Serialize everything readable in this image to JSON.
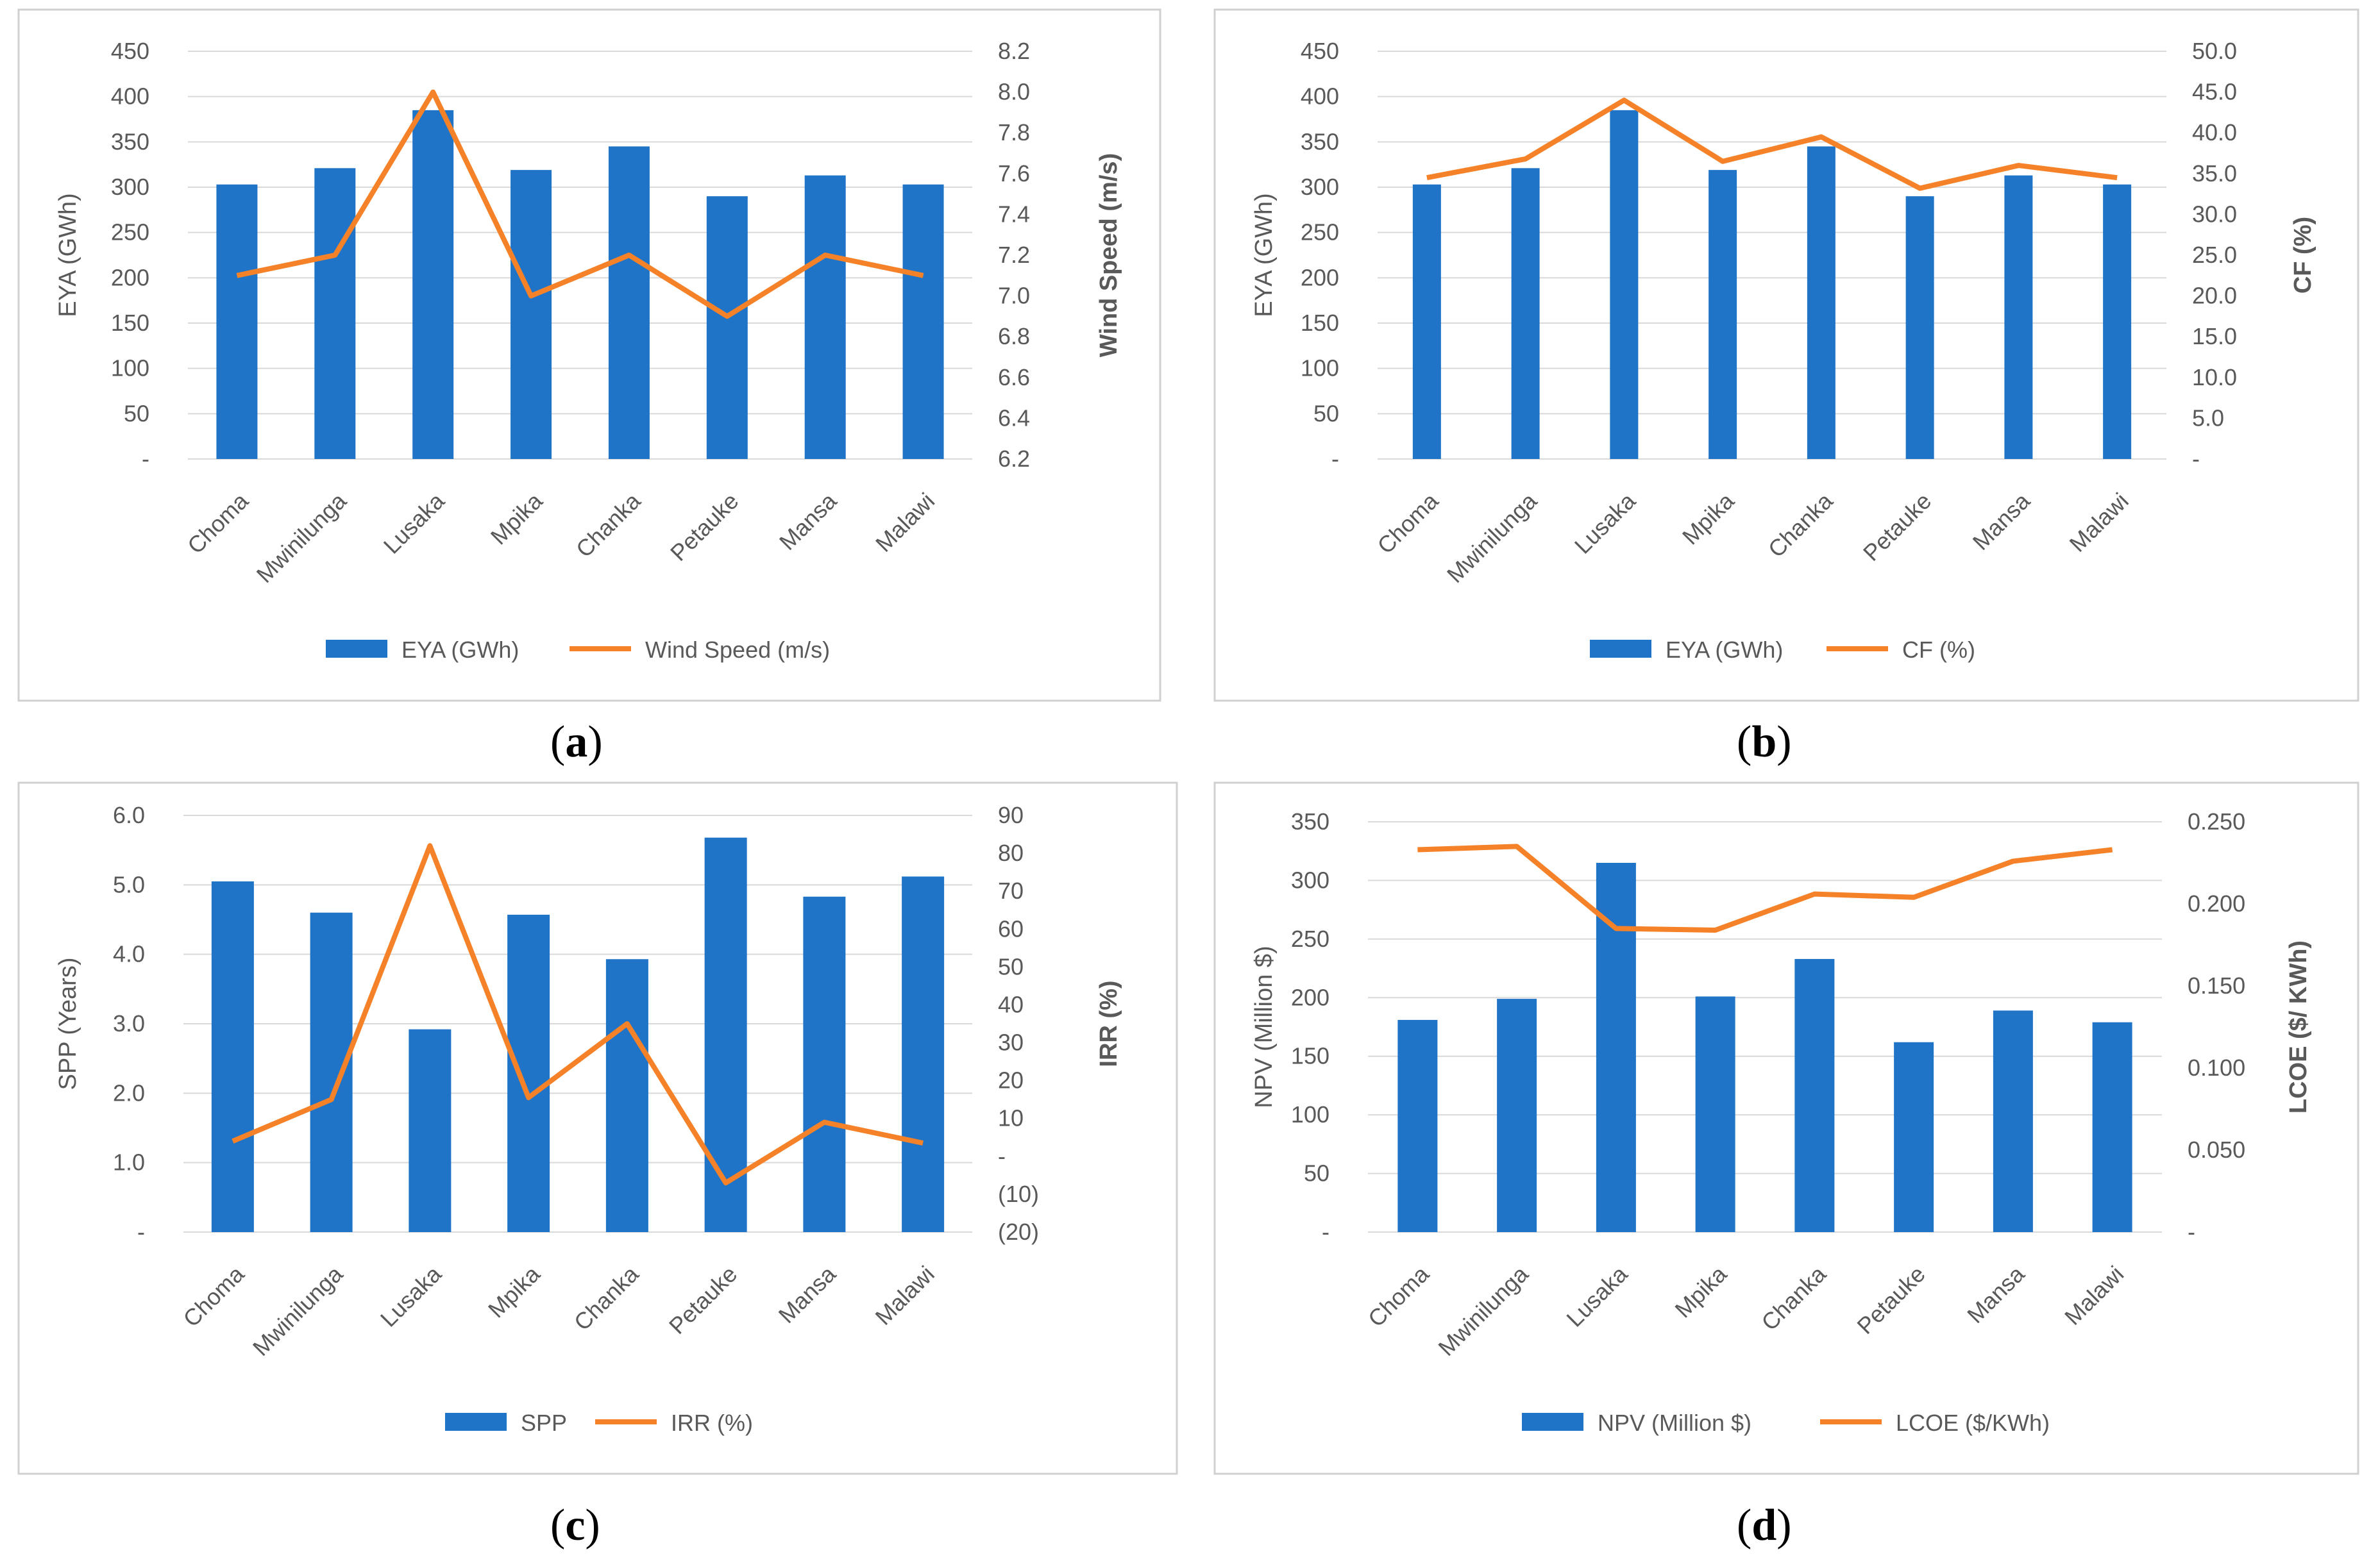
{
  "colors": {
    "bar": "#1f74c7",
    "line": "#f58228",
    "axis_text": "#595959",
    "grid": "#d9d9d9",
    "frame": "#d0d0d0"
  },
  "charts": [
    {
      "caption": "a",
      "chart_data": {
        "type": "bar",
        "categories": [
          "Choma",
          "Mwinilunga",
          "Lusaka",
          "Mpika",
          "Chanka",
          "Petauke",
          "Mansa",
          "Malawi"
        ],
        "series": [
          {
            "name": "EYA (GWh)",
            "type": "bar",
            "axis": "left",
            "values": [
              303,
              321,
              385,
              319,
              345,
              290,
              313,
              303
            ]
          },
          {
            "name": "Wind Speed (m/s)",
            "type": "line",
            "axis": "right",
            "values": [
              7.1,
              7.2,
              8.0,
              7.0,
              7.2,
              6.9,
              7.2,
              7.1
            ]
          }
        ],
        "ylabel": "EYA (GWh)",
        "ylabel_right": "Wind Speed (m/s)",
        "ylim": [
          0,
          450
        ],
        "ylim_right": [
          6.2,
          8.2
        ],
        "yticks": [
          "-",
          "50",
          "100",
          "150",
          "200",
          "250",
          "300",
          "350",
          "400",
          "450"
        ],
        "yticks_right": [
          "6.2",
          "6.4",
          "6.6",
          "6.8",
          "7.0",
          "7.2",
          "7.4",
          "7.6",
          "7.8",
          "8.0",
          "8.2"
        ],
        "grid": true,
        "legend": "bottom"
      }
    },
    {
      "caption": "b",
      "chart_data": {
        "type": "bar",
        "categories": [
          "Choma",
          "Mwinilunga",
          "Lusaka",
          "Mpika",
          "Chanka",
          "Petauke",
          "Mansa",
          "Malawi"
        ],
        "series": [
          {
            "name": "EYA (GWh)",
            "type": "bar",
            "axis": "left",
            "values": [
              303,
              321,
              385,
              319,
              345,
              290,
              313,
              303
            ]
          },
          {
            "name": "CF (%)",
            "type": "line",
            "axis": "right",
            "values": [
              34.5,
              36.8,
              44.0,
              36.5,
              39.5,
              33.2,
              36.0,
              34.5
            ]
          }
        ],
        "ylabel": "EYA (GWh)",
        "ylabel_right": "CF (%)",
        "ylim": [
          0,
          450
        ],
        "ylim_right": [
          0,
          50
        ],
        "yticks": [
          "-",
          "50",
          "100",
          "150",
          "200",
          "250",
          "300",
          "350",
          "400",
          "450"
        ],
        "yticks_right": [
          "-",
          "5.0",
          "10.0",
          "15.0",
          "20.0",
          "25.0",
          "30.0",
          "35.0",
          "40.0",
          "45.0",
          "50.0"
        ],
        "grid": true,
        "legend": "bottom"
      }
    },
    {
      "caption": "c",
      "chart_data": {
        "type": "bar",
        "categories": [
          "Choma",
          "Mwinilunga",
          "Lusaka",
          "Mpika",
          "Chanka",
          "Petauke",
          "Mansa",
          "Malawi"
        ],
        "series": [
          {
            "name": "SPP",
            "type": "bar",
            "axis": "left",
            "values": [
              5.05,
              4.6,
              2.92,
              4.57,
              3.93,
              5.68,
              4.83,
              5.12
            ]
          },
          {
            "name": "IRR (%)",
            "type": "line",
            "axis": "right",
            "values": [
              4,
              15,
              82,
              15.5,
              35,
              -7,
              9,
              3.5
            ]
          }
        ],
        "ylabel": "SPP (Years)",
        "ylabel_right": "IRR (%)",
        "ylim": [
          0,
          6
        ],
        "ylim_right": [
          -20,
          90
        ],
        "yticks": [
          "-",
          "1.0",
          "2.0",
          "3.0",
          "4.0",
          "5.0",
          "6.0"
        ],
        "yticks_right": [
          "(20)",
          "(10)",
          "-",
          "10",
          "20",
          "30",
          "40",
          "50",
          "60",
          "70",
          "80",
          "90"
        ],
        "grid": true,
        "legend": "bottom"
      }
    },
    {
      "caption": "d",
      "chart_data": {
        "type": "bar",
        "categories": [
          "Choma",
          "Mwinilunga",
          "Lusaka",
          "Mpika",
          "Chanka",
          "Petauke",
          "Mansa",
          "Malawi"
        ],
        "series": [
          {
            "name": "NPV (Million $)",
            "type": "bar",
            "axis": "left",
            "values": [
              181,
              199,
              315,
              201,
              233,
              162,
              189,
              179
            ]
          },
          {
            "name": "LCOE ($/KWh)",
            "type": "line",
            "axis": "right",
            "values": [
              0.233,
              0.235,
              0.185,
              0.184,
              0.206,
              0.204,
              0.226,
              0.233
            ]
          }
        ],
        "ylabel": "NPV (Million $)",
        "ylabel_right": "LCOE ($/ KWh)",
        "ylim": [
          0,
          350
        ],
        "ylim_right": [
          0,
          0.25
        ],
        "yticks": [
          "-",
          "50",
          "100",
          "150",
          "200",
          "250",
          "300",
          "350"
        ],
        "yticks_right": [
          "-",
          "0.050",
          "0.100",
          "0.150",
          "0.200",
          "0.250"
        ],
        "grid": true,
        "legend": "bottom"
      }
    }
  ]
}
